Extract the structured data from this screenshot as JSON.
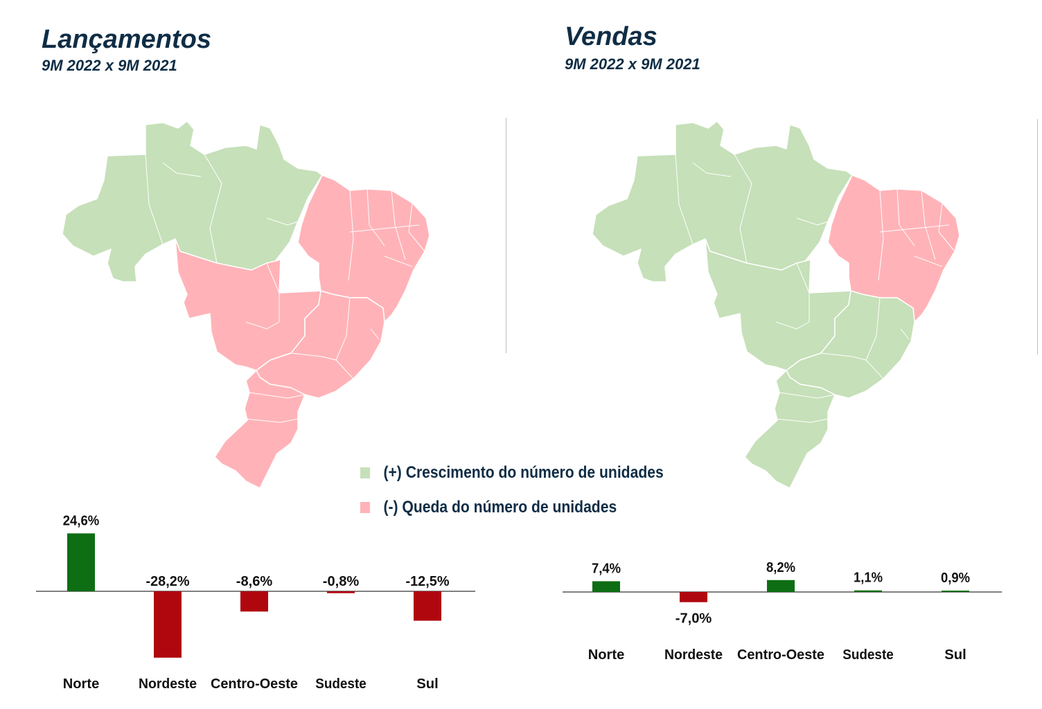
{
  "left": {
    "title": "Lançamentos",
    "subtitle": "9M 2022 x 9M 2021"
  },
  "right": {
    "title": "Vendas",
    "subtitle": "9M 2022 x 9M 2021"
  },
  "colors": {
    "growth_map": "#c6e0b9",
    "decline_map": "#ffb3b8",
    "growth_bar": "#0e6e14",
    "decline_bar": "#b0070f",
    "title": "#0f2d45"
  },
  "regions": {
    "lancamentos": {
      "Norte": "growth",
      "Nordeste": "decline",
      "Centro-Oeste": "decline",
      "Sudeste": "decline",
      "Sul": "decline"
    },
    "vendas": {
      "Norte": "growth",
      "Nordeste": "decline",
      "Centro-Oeste": "growth",
      "Sudeste": "growth",
      "Sul": "growth"
    }
  },
  "legend": {
    "growth": "(+) Crescimento do número de unidades",
    "decline": "(-) Queda do número de unidades"
  },
  "chart_data": [
    {
      "type": "bar",
      "categories": [
        "Norte",
        "Nordeste",
        "Centro-Oeste",
        "Sudeste",
        "Sul"
      ],
      "values": [
        24.6,
        -28.2,
        -8.6,
        -0.8,
        -12.5
      ],
      "labels": [
        "24,6%",
        "-28,2%",
        "-8,6%",
        "-0,8%",
        "-12,5%"
      ],
      "title": "",
      "xlabel": "",
      "ylabel": ""
    },
    {
      "type": "bar",
      "categories": [
        "Norte",
        "Nordeste",
        "Centro-Oeste",
        "Sudeste",
        "Sul"
      ],
      "values": [
        7.4,
        -7.0,
        8.2,
        1.1,
        0.9
      ],
      "labels": [
        "7,4%",
        "-7,0%",
        "8,2%",
        "1,1%",
        "0,9%"
      ],
      "title": "",
      "xlabel": "",
      "ylabel": ""
    }
  ]
}
